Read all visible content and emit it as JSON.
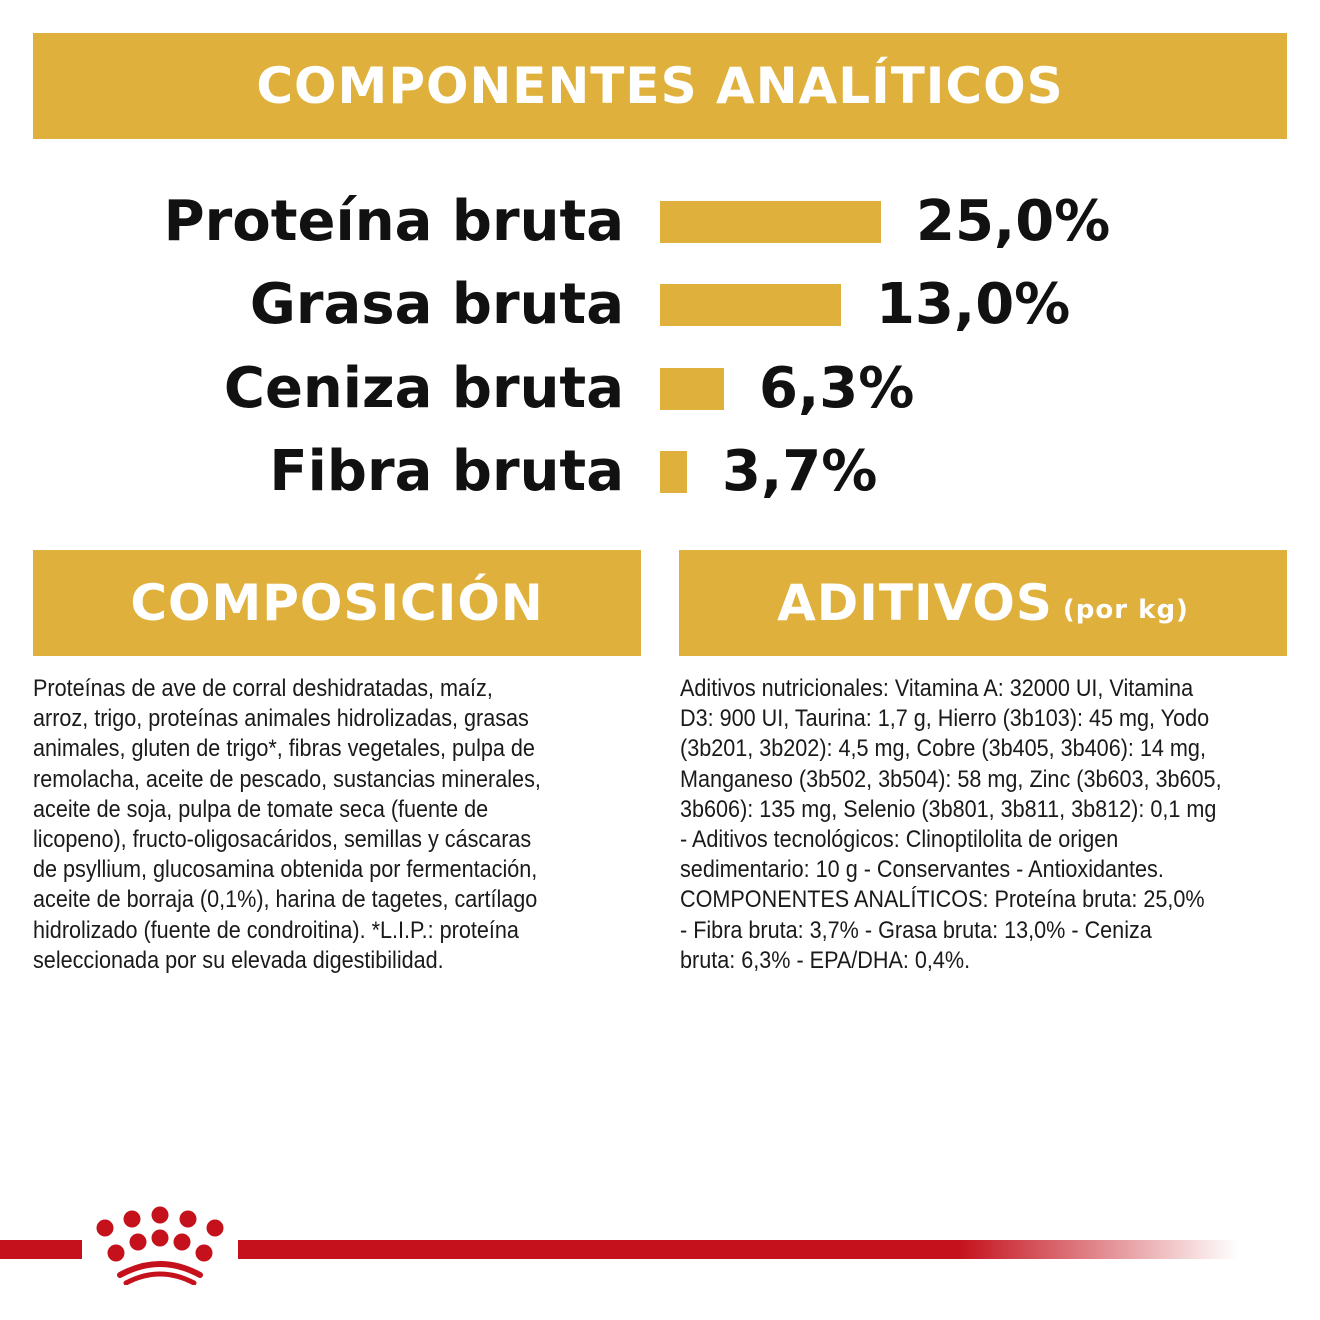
{
  "header": {
    "title": "COMPONENTES ANALÍTICOS"
  },
  "chart_data": {
    "type": "bar",
    "title": "COMPONENTES ANALÍTICOS",
    "categories": [
      "Proteína bruta",
      "Grasa bruta",
      "Ceniza bruta",
      "Fibra bruta"
    ],
    "values": [
      25.0,
      13.0,
      6.3,
      3.7
    ],
    "labels": [
      "25,0%",
      "13,0%",
      "6,3%",
      "3,7%"
    ],
    "unit": "%"
  },
  "composicion": {
    "title": "COMPOSICIÓN",
    "lines": [
      "Proteínas de ave de corral deshidratadas, maíz,",
      "arroz, trigo, proteínas animales hidrolizadas, grasas",
      "animales, gluten de trigo*, fibras vegetales, pulpa de",
      "remolacha, aceite de pescado, sustancias minerales,",
      "aceite de soja, pulpa de tomate seca (fuente de",
      "licopeno), fructo-oligosacáridos, semillas y cáscaras",
      "de psyllium, glucosamina obtenida por fermentación,",
      "aceite de borraja (0,1%), harina de tagetes, cartílago",
      "hidrolizado (fuente de condroitina). *L.I.P.: proteína",
      "seleccionada por su elevada digestibilidad."
    ]
  },
  "aditivos": {
    "title": "ADITIVOS",
    "subtitle": "(por kg)",
    "lines": [
      "Aditivos nutricionales: Vitamina A: 32000 UI, Vitamina",
      "D3: 900 UI, Taurina: 1,7 g, Hierro (3b103): 45 mg, Yodo",
      "(3b201, 3b202): 4,5 mg, Cobre (3b405, 3b406): 14 mg,",
      "Manganeso (3b502, 3b504): 58 mg, Zinc (3b603, 3b605,",
      "3b606): 135 mg, Selenio (3b801, 3b811, 3b812): 0,1 mg",
      "- Aditivos tecnológicos: Clinoptilolita de origen",
      "sedimentario: 10 g - Conservantes - Antioxidantes.",
      "COMPONENTES ANALÍTICOS: Proteína bruta: 25,0%",
      "- Fibra bruta: 3,7% - Grasa bruta: 13,0% - Ceniza",
      "bruta: 6,3% - EPA/DHA: 0,4%."
    ]
  },
  "colors": {
    "accent": "#E0B03C",
    "brand_red": "#C4111C"
  }
}
